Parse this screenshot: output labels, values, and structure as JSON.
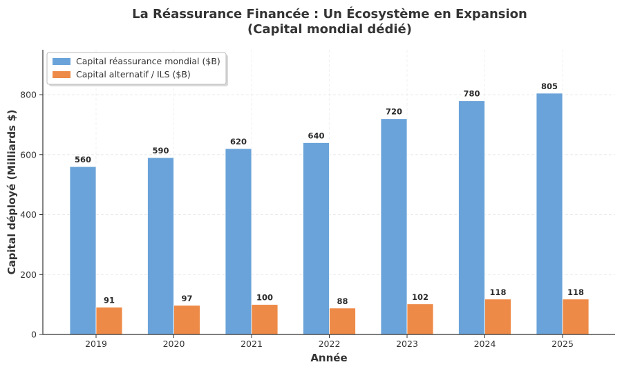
{
  "chart_data": {
    "type": "bar",
    "title_line1": "La Réassurance Financée : Un Écosystème en Expansion",
    "title_line2": "(Capital mondial dédié)",
    "xlabel": "Année",
    "ylabel": "Capital déployé (Milliards $)",
    "categories": [
      "2019",
      "2020",
      "2021",
      "2022",
      "2023",
      "2024",
      "2025"
    ],
    "ylim": [
      0,
      950
    ],
    "yticks": [
      0,
      200,
      400,
      600,
      800
    ],
    "grid": true,
    "legend_position": "top-left",
    "series": [
      {
        "name": "Capital réassurance mondial ($B)",
        "values": [
          560,
          590,
          620,
          640,
          720,
          780,
          805
        ],
        "color": "#6aa3d9"
      },
      {
        "name": "Capital alternatif / ILS ($B)",
        "values": [
          91,
          97,
          100,
          88,
          102,
          118,
          118
        ],
        "color": "#ee8a47"
      }
    ]
  }
}
